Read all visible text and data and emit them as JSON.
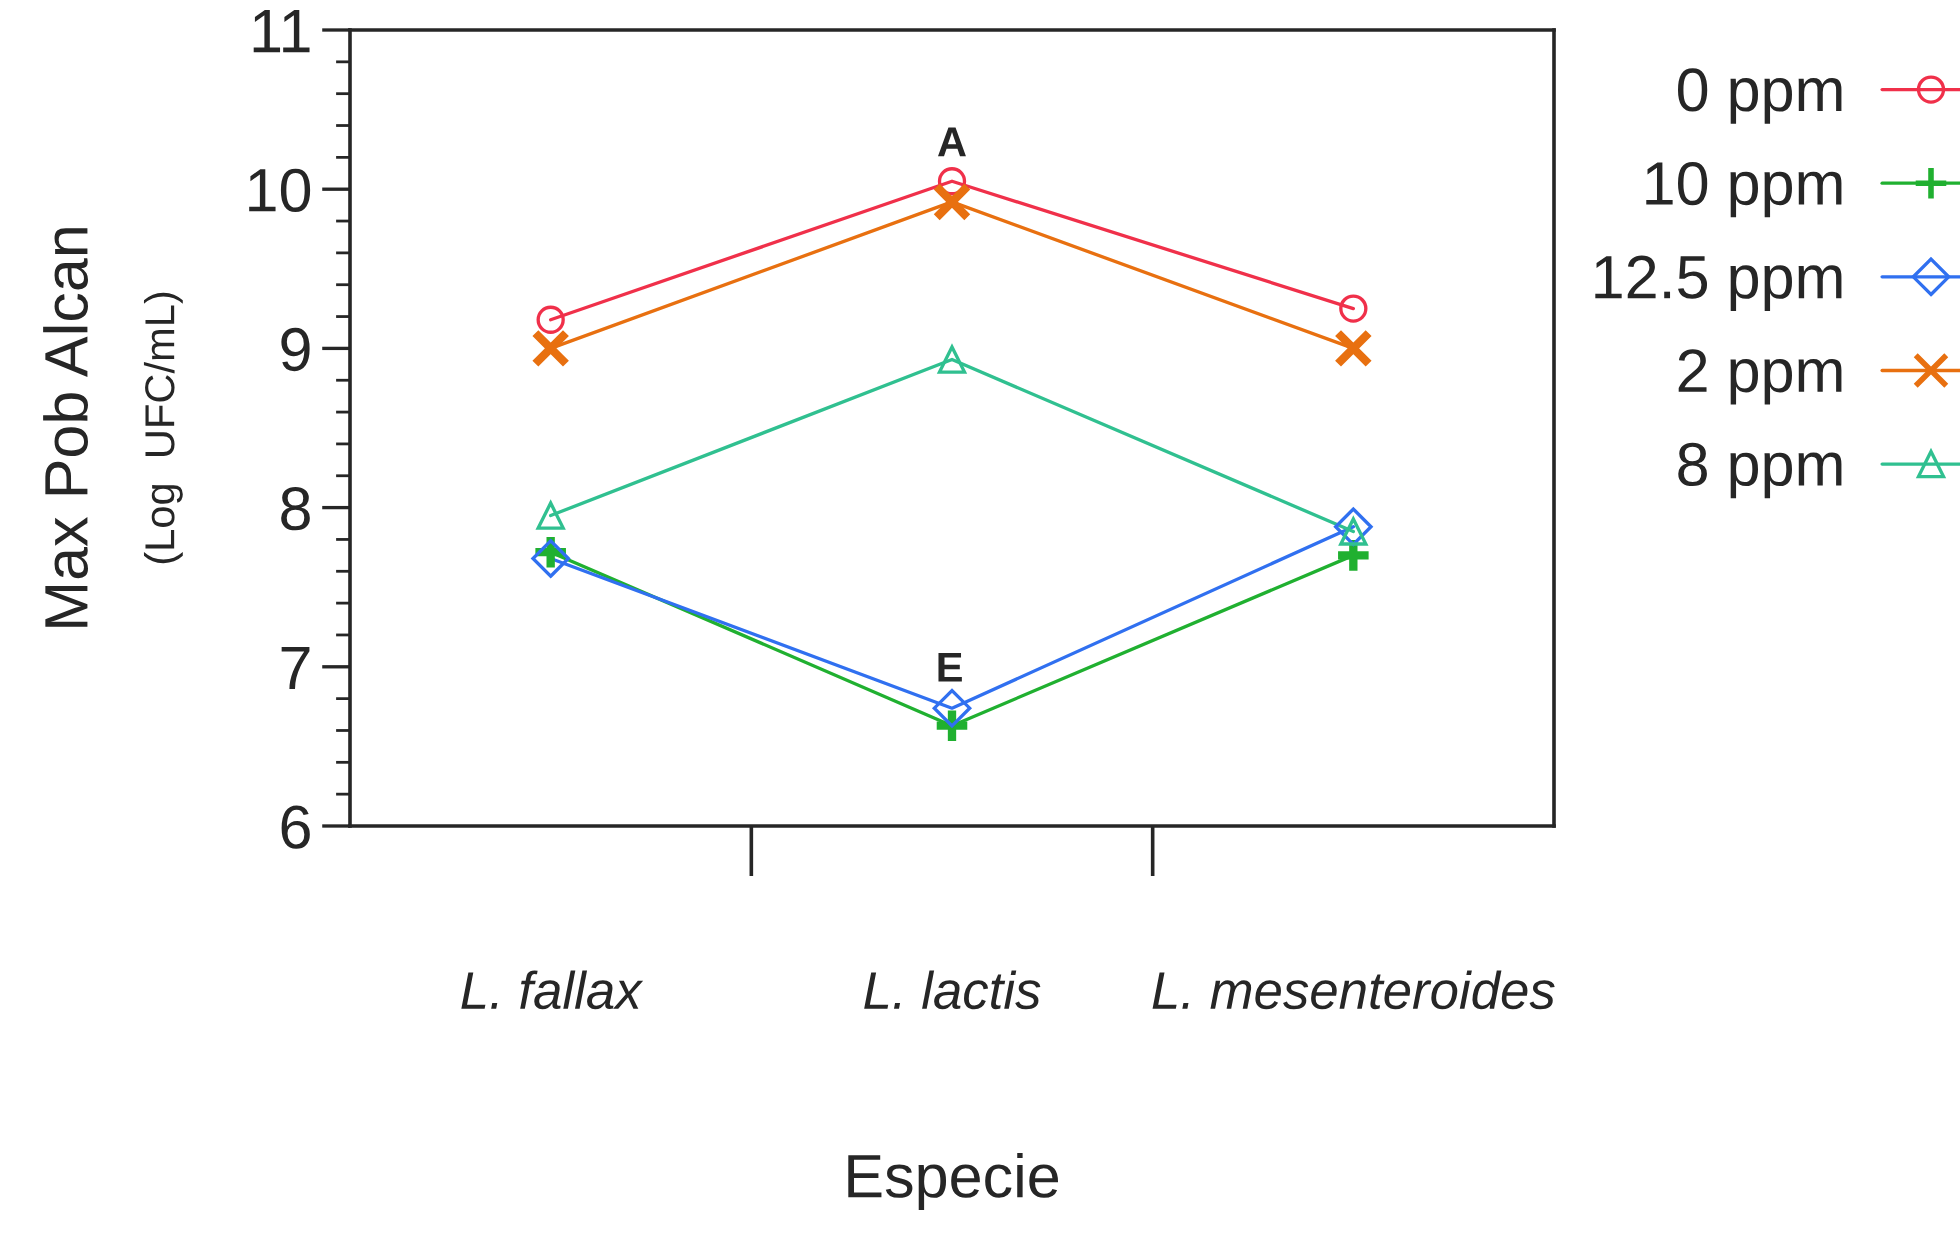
{
  "chart_data": {
    "type": "line",
    "xlabel": "Especie",
    "ylabel": "Max Pob Alcan\n(Log  UFC/mL)",
    "categories": [
      "L. fallax",
      "L. lactis",
      "L. mesenteroides"
    ],
    "ylim": [
      6,
      11
    ],
    "yticks": [
      6,
      7,
      8,
      9,
      10,
      11
    ],
    "legend": "right",
    "grid": false,
    "series": [
      {
        "name": "0 ppm",
        "color": "#f0304a",
        "marker": "circle",
        "values": [
          9.18,
          10.05,
          9.25
        ]
      },
      {
        "name": "10 ppm",
        "color": "#20b030",
        "marker": "plus",
        "values": [
          7.72,
          6.63,
          7.7
        ]
      },
      {
        "name": "12.5 ppm",
        "color": "#3070f0",
        "marker": "diamond",
        "values": [
          7.68,
          6.74,
          7.88
        ]
      },
      {
        "name": "2 ppm",
        "color": "#e87010",
        "marker": "cross",
        "values": [
          9.0,
          9.92,
          9.0
        ]
      },
      {
        "name": "8 ppm",
        "color": "#30c090",
        "marker": "triangle",
        "values": [
          7.95,
          8.93,
          7.85
        ]
      }
    ],
    "annotations": [
      "A",
      "E"
    ]
  }
}
